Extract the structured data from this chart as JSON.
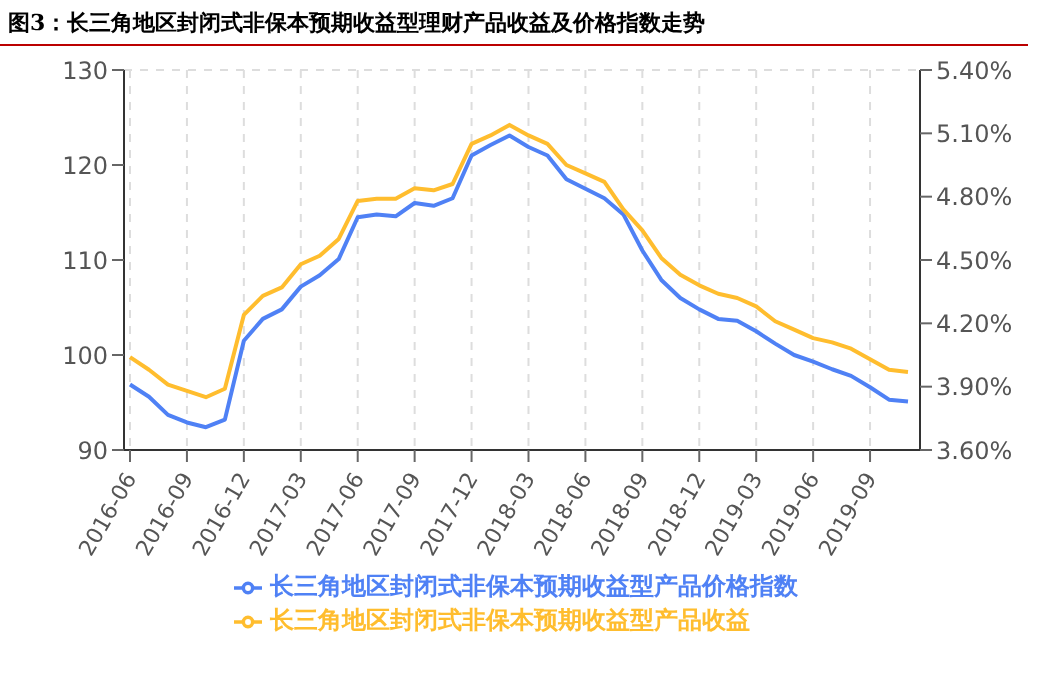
{
  "chart_data": {
    "type": "line",
    "title": "图3：长三角地区封闭式非保本预期收益型理财产品收益及价格指数走势",
    "categories": [
      "2016-06",
      null,
      null,
      "2016-09",
      null,
      null,
      "2016-12",
      null,
      null,
      "2017-03",
      null,
      null,
      "2017-06",
      null,
      null,
      "2017-09",
      null,
      null,
      "2017-12",
      null,
      null,
      "2018-03",
      null,
      null,
      "2018-06",
      null,
      null,
      "2018-09",
      null,
      null,
      "2018-12",
      null,
      null,
      "2019-03",
      null,
      null,
      "2019-06",
      null,
      null,
      "2019-09",
      null,
      null
    ],
    "series": [
      {
        "name": "长三角地区封闭式非保本预期收益型产品价格指数",
        "color": "#4f81f5",
        "values": [
          96.9,
          95.6,
          93.7,
          92.9,
          92.4,
          93.2,
          101.5,
          103.8,
          104.8,
          107.2,
          108.4,
          110.1,
          114.5,
          114.8,
          114.6,
          116.0,
          115.7,
          116.5,
          121.0,
          122.1,
          123.1,
          121.9,
          121.0,
          118.5,
          117.5,
          116.5,
          114.8,
          111.0,
          107.9,
          106.0,
          104.8,
          103.8,
          103.6,
          102.5,
          101.2,
          100.0,
          99.3,
          98.5,
          97.8,
          96.6,
          95.3,
          95.1
        ]
      },
      {
        "name": "长三角地区封闭式非保本预期收益型产品收益",
        "color": "#ffbd2e",
        "axis": "y2",
        "values": [
          4.04,
          3.98,
          3.91,
          3.88,
          3.85,
          3.89,
          4.24,
          4.33,
          4.37,
          4.48,
          4.52,
          4.6,
          4.78,
          4.79,
          4.79,
          4.84,
          4.83,
          4.86,
          5.05,
          5.09,
          5.14,
          5.09,
          5.05,
          4.95,
          4.91,
          4.87,
          4.74,
          4.64,
          4.51,
          4.43,
          4.38,
          4.34,
          4.32,
          4.28,
          4.21,
          4.17,
          4.13,
          4.11,
          4.08,
          4.03,
          3.98,
          3.97
        ]
      }
    ],
    "ylim": [
      90,
      130
    ],
    "yticks": [
      90,
      100,
      110,
      120,
      130
    ],
    "y2lim": [
      3.6,
      5.4
    ],
    "y2ticks": [
      {
        "value": 3.6,
        "label": "3.60%"
      },
      {
        "value": 3.9,
        "label": "3.90%"
      },
      {
        "value": 4.2,
        "label": "4.20%"
      },
      {
        "value": 4.5,
        "label": "4.50%"
      },
      {
        "value": 4.8,
        "label": "4.80%"
      },
      {
        "value": 5.1,
        "label": "5.10%"
      },
      {
        "value": 5.4,
        "label": "5.40%"
      }
    ],
    "grid": true,
    "legend": "bottom",
    "marker": "none",
    "line_style": "solid"
  }
}
